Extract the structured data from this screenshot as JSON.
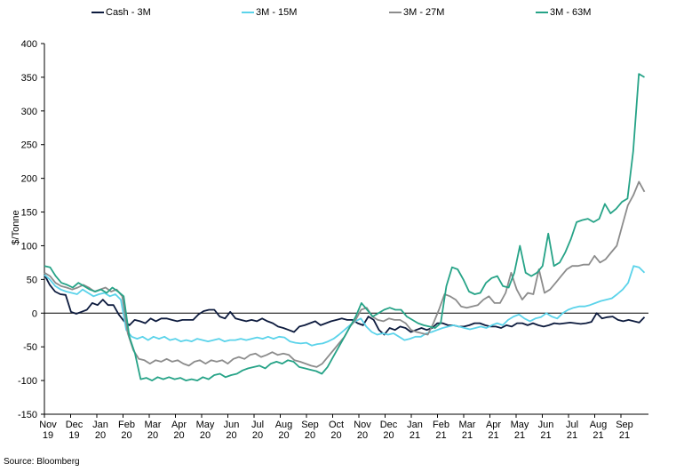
{
  "chart_data": {
    "type": "line",
    "title": "",
    "xlabel": "",
    "ylabel": "$/Tonne",
    "ylim": [
      -150,
      400
    ],
    "y_ticks": [
      400,
      350,
      300,
      250,
      200,
      150,
      100,
      50,
      0,
      -50,
      -100,
      -150
    ],
    "x_ticks": [
      "Nov 19",
      "Dec 19",
      "Jan 20",
      "Feb 20",
      "Mar 20",
      "Apr 20",
      "May 20",
      "Jun 20",
      "Jul 20",
      "Aug 20",
      "Sep 20",
      "Oct 20",
      "Nov 20",
      "Dec 20",
      "Jan 21",
      "Feb 21",
      "Mar 21",
      "Apr 21",
      "May 21",
      "Jun 21",
      "Jul 21",
      "Aug 21",
      "Sep 21"
    ],
    "x_start": "2019-11",
    "x_end_months": 23,
    "grid": false,
    "legend": "top",
    "source": "Source: Bloomberg",
    "series": [
      {
        "name": "Cash - 3M",
        "color": "#0d1b3e",
        "values": [
          57,
          42,
          32,
          28,
          27,
          2,
          -1,
          2,
          5,
          15,
          12,
          20,
          12,
          12,
          -2,
          -12,
          -18,
          -10,
          -12,
          -15,
          -8,
          -12,
          -8,
          -8,
          -10,
          -12,
          -10,
          -10,
          -10,
          -2,
          3,
          5,
          5,
          -5,
          -8,
          2,
          -8,
          -10,
          -12,
          -10,
          -12,
          -8,
          -12,
          -15,
          -20,
          -22,
          -25,
          -28,
          -20,
          -18,
          -15,
          -12,
          -18,
          -15,
          -12,
          -10,
          -8,
          -10,
          -10,
          -15,
          -18,
          -5,
          -10,
          -25,
          -32,
          -22,
          -25,
          -20,
          -22,
          -28,
          -25,
          -22,
          -25,
          -22,
          -15,
          -15,
          -18,
          -18,
          -20,
          -20,
          -18,
          -15,
          -15,
          -18,
          -20,
          -20,
          -22,
          -18,
          -20,
          -15,
          -15,
          -18,
          -15,
          -18,
          -20,
          -18,
          -15,
          -16,
          -15,
          -14,
          -15,
          -16,
          -15,
          -13,
          0,
          -8,
          -6,
          -5,
          -10,
          -12,
          -10,
          -12,
          -14,
          -6
        ],
        "dates_span": [
          0,
          22.9
        ]
      },
      {
        "name": "3M - 15M",
        "color": "#5bd3ea",
        "values": [
          57,
          50,
          40,
          35,
          32,
          30,
          28,
          35,
          30,
          25,
          28,
          30,
          25,
          28,
          20,
          -25,
          -35,
          -38,
          -35,
          -40,
          -35,
          -38,
          -35,
          -40,
          -38,
          -42,
          -40,
          -42,
          -38,
          -40,
          -42,
          -40,
          -38,
          -42,
          -40,
          -40,
          -38,
          -40,
          -38,
          -36,
          -38,
          -35,
          -38,
          -35,
          -36,
          -42,
          -44,
          -45,
          -44,
          -48,
          -46,
          -45,
          -42,
          -38,
          -32,
          -25,
          -18,
          -12,
          -8,
          -20,
          -28,
          -32,
          -30,
          -32,
          -30,
          -35,
          -40,
          -38,
          -35,
          -35,
          -30,
          -28,
          -25,
          -22,
          -20,
          -18,
          -20,
          -22,
          -24,
          -22,
          -20,
          -22,
          -18,
          -15,
          -18,
          -10,
          -5,
          -2,
          -8,
          -12,
          -8,
          -6,
          0,
          -5,
          -8,
          0,
          5,
          8,
          10,
          10,
          12,
          15,
          18,
          20,
          22,
          28,
          35,
          45,
          70,
          68,
          60
        ],
        "dates_span": [
          0,
          22.9
        ]
      },
      {
        "name": "3M - 27M",
        "color": "#8c8c8c",
        "values": [
          60,
          55,
          45,
          40,
          38,
          35,
          38,
          42,
          38,
          32,
          35,
          38,
          32,
          35,
          25,
          -30,
          -55,
          -68,
          -70,
          -75,
          -70,
          -72,
          -68,
          -72,
          -70,
          -75,
          -78,
          -72,
          -70,
          -75,
          -70,
          -72,
          -70,
          -75,
          -68,
          -65,
          -68,
          -62,
          -60,
          -65,
          -62,
          -58,
          -62,
          -60,
          -62,
          -70,
          -72,
          -75,
          -78,
          -80,
          -75,
          -65,
          -55,
          -45,
          -35,
          -20,
          -10,
          5,
          8,
          -5,
          -10,
          -12,
          -8,
          -10,
          -10,
          -15,
          -25,
          -28,
          -30,
          -32,
          -15,
          5,
          28,
          25,
          20,
          10,
          8,
          10,
          12,
          20,
          25,
          15,
          15,
          30,
          60,
          35,
          20,
          30,
          28,
          65,
          30,
          35,
          45,
          55,
          65,
          70,
          70,
          72,
          72,
          85,
          75,
          80,
          90,
          100,
          130,
          160,
          175,
          195,
          180
        ],
        "dates_span": [
          0,
          22.9
        ]
      },
      {
        "name": "3M - 63M",
        "color": "#26a387",
        "values": [
          70,
          68,
          55,
          45,
          42,
          38,
          45,
          40,
          35,
          32,
          35,
          30,
          38,
          32,
          25,
          -35,
          -60,
          -98,
          -96,
          -100,
          -95,
          -98,
          -95,
          -98,
          -96,
          -100,
          -98,
          -100,
          -95,
          -98,
          -92,
          -90,
          -95,
          -92,
          -90,
          -85,
          -82,
          -80,
          -78,
          -82,
          -75,
          -72,
          -75,
          -70,
          -72,
          -80,
          -82,
          -84,
          -86,
          -90,
          -80,
          -65,
          -50,
          -35,
          -20,
          -5,
          15,
          5,
          -5,
          0,
          5,
          8,
          5,
          5,
          -5,
          -10,
          -15,
          -18,
          -20,
          -22,
          -15,
          40,
          68,
          65,
          50,
          32,
          28,
          30,
          45,
          52,
          55,
          40,
          38,
          60,
          100,
          60,
          55,
          60,
          70,
          118,
          70,
          75,
          90,
          110,
          135,
          138,
          140,
          135,
          140,
          162,
          148,
          155,
          165,
          170,
          240,
          355,
          350
        ],
        "dates_span": [
          0,
          22.9
        ]
      }
    ]
  }
}
